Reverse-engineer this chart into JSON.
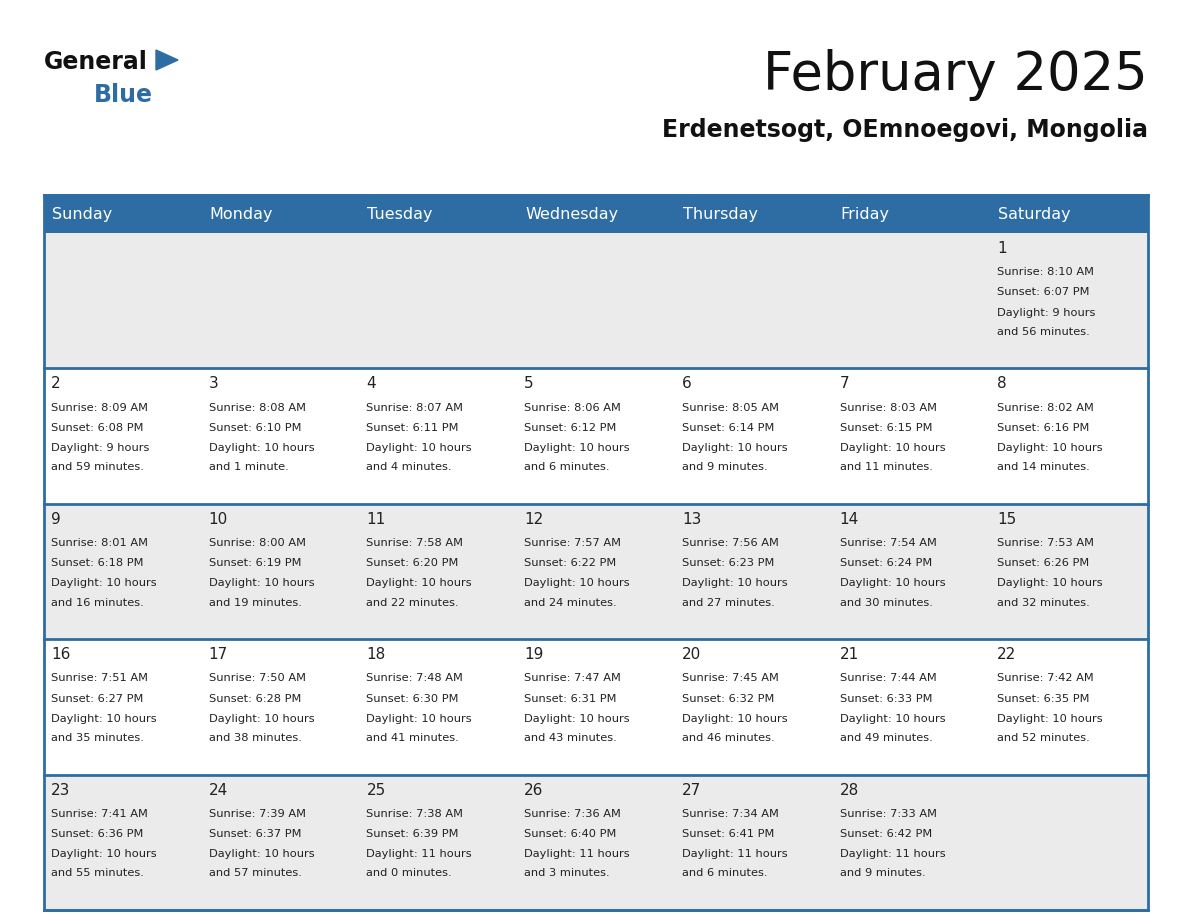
{
  "title": "February 2025",
  "subtitle": "Erdenetsogt, OEmnoegovi, Mongolia",
  "header_bg": "#2e6da4",
  "header_text": "#ffffff",
  "weekdays": [
    "Sunday",
    "Monday",
    "Tuesday",
    "Wednesday",
    "Thursday",
    "Friday",
    "Saturday"
  ],
  "days": [
    {
      "day": 1,
      "col": 6,
      "row": 0,
      "sunrise": "8:10 AM",
      "sunset": "6:07 PM",
      "daylight": "9 hours and 56 minutes."
    },
    {
      "day": 2,
      "col": 0,
      "row": 1,
      "sunrise": "8:09 AM",
      "sunset": "6:08 PM",
      "daylight": "9 hours and 59 minutes."
    },
    {
      "day": 3,
      "col": 1,
      "row": 1,
      "sunrise": "8:08 AM",
      "sunset": "6:10 PM",
      "daylight": "10 hours and 1 minute."
    },
    {
      "day": 4,
      "col": 2,
      "row": 1,
      "sunrise": "8:07 AM",
      "sunset": "6:11 PM",
      "daylight": "10 hours and 4 minutes."
    },
    {
      "day": 5,
      "col": 3,
      "row": 1,
      "sunrise": "8:06 AM",
      "sunset": "6:12 PM",
      "daylight": "10 hours and 6 minutes."
    },
    {
      "day": 6,
      "col": 4,
      "row": 1,
      "sunrise": "8:05 AM",
      "sunset": "6:14 PM",
      "daylight": "10 hours and 9 minutes."
    },
    {
      "day": 7,
      "col": 5,
      "row": 1,
      "sunrise": "8:03 AM",
      "sunset": "6:15 PM",
      "daylight": "10 hours and 11 minutes."
    },
    {
      "day": 8,
      "col": 6,
      "row": 1,
      "sunrise": "8:02 AM",
      "sunset": "6:16 PM",
      "daylight": "10 hours and 14 minutes."
    },
    {
      "day": 9,
      "col": 0,
      "row": 2,
      "sunrise": "8:01 AM",
      "sunset": "6:18 PM",
      "daylight": "10 hours and 16 minutes."
    },
    {
      "day": 10,
      "col": 1,
      "row": 2,
      "sunrise": "8:00 AM",
      "sunset": "6:19 PM",
      "daylight": "10 hours and 19 minutes."
    },
    {
      "day": 11,
      "col": 2,
      "row": 2,
      "sunrise": "7:58 AM",
      "sunset": "6:20 PM",
      "daylight": "10 hours and 22 minutes."
    },
    {
      "day": 12,
      "col": 3,
      "row": 2,
      "sunrise": "7:57 AM",
      "sunset": "6:22 PM",
      "daylight": "10 hours and 24 minutes."
    },
    {
      "day": 13,
      "col": 4,
      "row": 2,
      "sunrise": "7:56 AM",
      "sunset": "6:23 PM",
      "daylight": "10 hours and 27 minutes."
    },
    {
      "day": 14,
      "col": 5,
      "row": 2,
      "sunrise": "7:54 AM",
      "sunset": "6:24 PM",
      "daylight": "10 hours and 30 minutes."
    },
    {
      "day": 15,
      "col": 6,
      "row": 2,
      "sunrise": "7:53 AM",
      "sunset": "6:26 PM",
      "daylight": "10 hours and 32 minutes."
    },
    {
      "day": 16,
      "col": 0,
      "row": 3,
      "sunrise": "7:51 AM",
      "sunset": "6:27 PM",
      "daylight": "10 hours and 35 minutes."
    },
    {
      "day": 17,
      "col": 1,
      "row": 3,
      "sunrise": "7:50 AM",
      "sunset": "6:28 PM",
      "daylight": "10 hours and 38 minutes."
    },
    {
      "day": 18,
      "col": 2,
      "row": 3,
      "sunrise": "7:48 AM",
      "sunset": "6:30 PM",
      "daylight": "10 hours and 41 minutes."
    },
    {
      "day": 19,
      "col": 3,
      "row": 3,
      "sunrise": "7:47 AM",
      "sunset": "6:31 PM",
      "daylight": "10 hours and 43 minutes."
    },
    {
      "day": 20,
      "col": 4,
      "row": 3,
      "sunrise": "7:45 AM",
      "sunset": "6:32 PM",
      "daylight": "10 hours and 46 minutes."
    },
    {
      "day": 21,
      "col": 5,
      "row": 3,
      "sunrise": "7:44 AM",
      "sunset": "6:33 PM",
      "daylight": "10 hours and 49 minutes."
    },
    {
      "day": 22,
      "col": 6,
      "row": 3,
      "sunrise": "7:42 AM",
      "sunset": "6:35 PM",
      "daylight": "10 hours and 52 minutes."
    },
    {
      "day": 23,
      "col": 0,
      "row": 4,
      "sunrise": "7:41 AM",
      "sunset": "6:36 PM",
      "daylight": "10 hours and 55 minutes."
    },
    {
      "day": 24,
      "col": 1,
      "row": 4,
      "sunrise": "7:39 AM",
      "sunset": "6:37 PM",
      "daylight": "10 hours and 57 minutes."
    },
    {
      "day": 25,
      "col": 2,
      "row": 4,
      "sunrise": "7:38 AM",
      "sunset": "6:39 PM",
      "daylight": "11 hours and 0 minutes."
    },
    {
      "day": 26,
      "col": 3,
      "row": 4,
      "sunrise": "7:36 AM",
      "sunset": "6:40 PM",
      "daylight": "11 hours and 3 minutes."
    },
    {
      "day": 27,
      "col": 4,
      "row": 4,
      "sunrise": "7:34 AM",
      "sunset": "6:41 PM",
      "daylight": "11 hours and 6 minutes."
    },
    {
      "day": 28,
      "col": 5,
      "row": 4,
      "sunrise": "7:33 AM",
      "sunset": "6:42 PM",
      "daylight": "11 hours and 9 minutes."
    }
  ],
  "num_rows": 5,
  "row_bg": [
    "#ebebeb",
    "#ffffff",
    "#ebebeb",
    "#ffffff",
    "#ebebeb"
  ],
  "separator_color": "#2e6da4",
  "day_num_color": "#222222",
  "info_color": "#222222",
  "logo_general_color": "#111111",
  "logo_blue_color": "#2e6da4",
  "title_color": "#111111",
  "subtitle_color": "#111111"
}
